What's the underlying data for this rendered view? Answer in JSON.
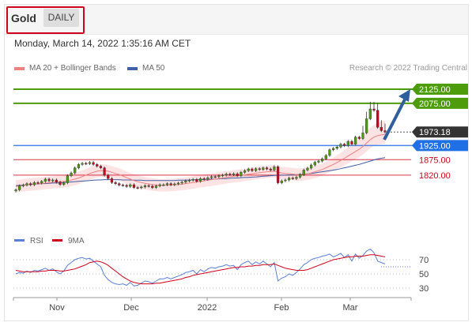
{
  "header": {
    "instrument": "Gold",
    "period": "DAILY"
  },
  "datetime": "Monday, March 14, 2022 1:35:16 AM CET",
  "legend": {
    "ma20_label": "MA 20 + Bollinger Bands",
    "ma50_label": "MA 50",
    "copyright": "Research © 2022 Trading Central"
  },
  "colors": {
    "resistance": "#4c9c0c",
    "support": "#4a86e8",
    "red_level": "#d0021b",
    "current": "#333333",
    "arrow": "#2f5e9c",
    "ma20": "#f08080",
    "ma50": "#3f5fa8",
    "candle_up": "#4c9c0c",
    "candle_down": "#d0021b",
    "rsi": "#5b7fd6",
    "rsi_ma": "#d0021b"
  },
  "chart_data": {
    "type": "candlestick",
    "price_levels": [
      {
        "value": 2125.0,
        "label": "2125.00",
        "kind": "resistance"
      },
      {
        "value": 2075.0,
        "label": "2075.00",
        "kind": "resistance"
      },
      {
        "value": 1973.18,
        "label": "1973.18",
        "kind": "current"
      },
      {
        "value": 1925.0,
        "label": "1925.00",
        "kind": "support"
      },
      {
        "value": 1875.0,
        "label": "1875.00",
        "kind": "red"
      },
      {
        "value": 1820.0,
        "label": "1820.00",
        "kind": "red"
      }
    ],
    "x_ticks": [
      "Nov",
      "Dec",
      "2022",
      "Feb",
      "Mar"
    ],
    "rsi": {
      "legend_rsi": "RSI",
      "legend_ma": "9MA",
      "levels": [
        70,
        50,
        30
      ]
    },
    "series_close": [
      1768,
      1782,
      1785,
      1790,
      1786,
      1794,
      1792,
      1798,
      1806,
      1800,
      1803,
      1795,
      1787,
      1793,
      1818,
      1828,
      1846,
      1858,
      1862,
      1861,
      1865,
      1858,
      1852,
      1846,
      1820,
      1808,
      1794,
      1790,
      1785,
      1784,
      1780,
      1786,
      1776,
      1775,
      1778,
      1783,
      1781,
      1776,
      1782,
      1786,
      1786,
      1790,
      1786,
      1789,
      1792,
      1795,
      1800,
      1802,
      1805,
      1798,
      1808,
      1805,
      1811,
      1815,
      1814,
      1818,
      1820,
      1824,
      1822,
      1825,
      1818,
      1830,
      1836,
      1842,
      1836,
      1843,
      1840,
      1846,
      1842,
      1838,
      1850,
      1793,
      1800,
      1803,
      1810,
      1808,
      1813,
      1822,
      1838,
      1845,
      1856,
      1866,
      1870,
      1878,
      1890,
      1910,
      1915,
      1920,
      1930,
      1925,
      1940,
      1930,
      1955,
      1950,
      1970,
      2020,
      2055,
      2050,
      1990,
      1978,
      1973
    ],
    "ma20": [
      1780,
      1782,
      1784,
      1786,
      1787,
      1788,
      1789,
      1790,
      1792,
      1793,
      1795,
      1796,
      1797,
      1798,
      1800,
      1803,
      1806,
      1810,
      1815,
      1820,
      1826,
      1830,
      1834,
      1836,
      1836,
      1834,
      1830,
      1826,
      1822,
      1817,
      1811,
      1806,
      1801,
      1797,
      1794,
      1791,
      1789,
      1787,
      1785,
      1784,
      1784,
      1784,
      1785,
      1786,
      1787,
      1788,
      1790,
      1792,
      1794,
      1796,
      1798,
      1800,
      1802,
      1804,
      1806,
      1808,
      1810,
      1812,
      1814,
      1816,
      1817,
      1819,
      1821,
      1823,
      1825,
      1827,
      1829,
      1830,
      1832,
      1833,
      1834,
      1830,
      1828,
      1826,
      1825,
      1824,
      1822,
      1822,
      1823,
      1825,
      1828,
      1832,
      1836,
      1840,
      1846,
      1852,
      1858,
      1865,
      1872,
      1880,
      1888,
      1896,
      1904,
      1912,
      1922,
      1934,
      1946,
      1955,
      1960,
      1963,
      1965
    ],
    "ma50": [
      1783,
      1784,
      1785,
      1786,
      1787,
      1788,
      1789,
      1790,
      1790,
      1791,
      1792,
      1792,
      1793,
      1794,
      1795,
      1796,
      1797,
      1798,
      1799,
      1800,
      1801,
      1802,
      1803,
      1803,
      1804,
      1804,
      1804,
      1804,
      1804,
      1803,
      1803,
      1803,
      1802,
      1802,
      1802,
      1801,
      1801,
      1801,
      1801,
      1801,
      1801,
      1801,
      1801,
      1801,
      1802,
      1802,
      1802,
      1803,
      1803,
      1804,
      1804,
      1805,
      1805,
      1806,
      1806,
      1807,
      1808,
      1808,
      1809,
      1810,
      1810,
      1811,
      1812,
      1812,
      1813,
      1814,
      1815,
      1816,
      1817,
      1818,
      1819,
      1819,
      1820,
      1820,
      1821,
      1821,
      1822,
      1823,
      1824,
      1825,
      1826,
      1828,
      1830,
      1832,
      1834,
      1836,
      1838,
      1840,
      1843,
      1846,
      1849,
      1852,
      1855,
      1858,
      1862,
      1866,
      1870,
      1874,
      1878,
      1880,
      1882
    ],
    "rsi_values": [
      50,
      52,
      51,
      54,
      52,
      55,
      54,
      56,
      58,
      55,
      57,
      53,
      50,
      54,
      62,
      66,
      70,
      72,
      73,
      71,
      72,
      68,
      64,
      60,
      48,
      42,
      38,
      36,
      35,
      36,
      34,
      38,
      33,
      34,
      37,
      40,
      39,
      37,
      40,
      43,
      43,
      45,
      43,
      45,
      47,
      49,
      52,
      53,
      55,
      50,
      56,
      53,
      57,
      59,
      58,
      60,
      61,
      63,
      61,
      62,
      56,
      63,
      66,
      68,
      63,
      67,
      64,
      68,
      64,
      60,
      66,
      40,
      44,
      46,
      50,
      48,
      52,
      57,
      63,
      66,
      70,
      72,
      73,
      75,
      76,
      78,
      74,
      76,
      79,
      73,
      77,
      68,
      78,
      72,
      76,
      82,
      85,
      80,
      68,
      66,
      64
    ],
    "rsi_ma": [
      55,
      54,
      53,
      53,
      53,
      53,
      53,
      54,
      54,
      55,
      55,
      55,
      54,
      54,
      55,
      56,
      57,
      59,
      61,
      63,
      66,
      67,
      68,
      67,
      65,
      62,
      58,
      54,
      50,
      46,
      43,
      40,
      38,
      37,
      36,
      36,
      36,
      36,
      37,
      37,
      38,
      39,
      40,
      41,
      42,
      43,
      45,
      46,
      48,
      49,
      50,
      51,
      52,
      53,
      54,
      55,
      56,
      57,
      58,
      59,
      59,
      60,
      60,
      61,
      61,
      62,
      62,
      63,
      63,
      63,
      64,
      62,
      60,
      58,
      57,
      56,
      55,
      55,
      55,
      56,
      58,
      60,
      62,
      64,
      66,
      68,
      70,
      71,
      72,
      73,
      74,
      74,
      75,
      75,
      75,
      76,
      77,
      77,
      76,
      75,
      74
    ]
  }
}
